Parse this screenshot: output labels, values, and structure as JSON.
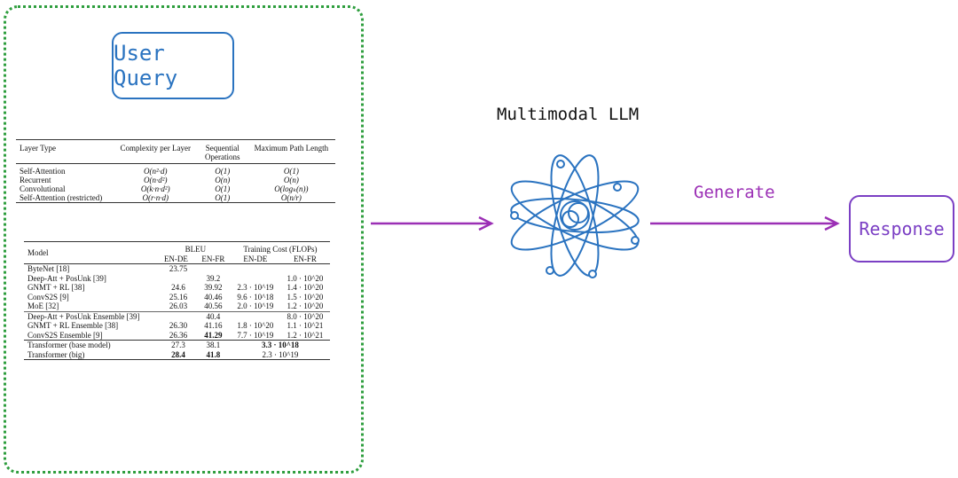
{
  "user_query": "User Query",
  "model_label": "Multimodal LLM",
  "action_label": "Generate",
  "response": "Response",
  "colors": {
    "frame": "#2e9e3e",
    "query": "#2a73c0",
    "arrow": "#9b2fb5",
    "response": "#7b3fc4",
    "atom": "#2a73c0"
  },
  "table1": {
    "headers": [
      "Layer Type",
      "Complexity per Layer",
      "Sequential Operations",
      "Maximum Path Length"
    ],
    "rows": [
      [
        "Self-Attention",
        "O(n²·d)",
        "O(1)",
        "O(1)"
      ],
      [
        "Recurrent",
        "O(n·d²)",
        "O(n)",
        "O(n)"
      ],
      [
        "Convolutional",
        "O(k·n·d²)",
        "O(1)",
        "O(logₖ(n))"
      ],
      [
        "Self-Attention (restricted)",
        "O(r·n·d)",
        "O(1)",
        "O(n/r)"
      ]
    ]
  },
  "table2": {
    "header_model": "Model",
    "header_bleu": "BLEU",
    "header_cost": "Training Cost (FLOPs)",
    "sub": [
      "EN-DE",
      "EN-FR",
      "EN-DE",
      "EN-FR"
    ],
    "rows": [
      [
        "ByteNet [18]",
        "23.75",
        "",
        "",
        ""
      ],
      [
        "Deep-Att + PosUnk [39]",
        "",
        "39.2",
        "",
        "1.0 · 10^20"
      ],
      [
        "GNMT + RL [38]",
        "24.6",
        "39.92",
        "2.3 · 10^19",
        "1.4 · 10^20"
      ],
      [
        "ConvS2S [9]",
        "25.16",
        "40.46",
        "9.6 · 10^18",
        "1.5 · 10^20"
      ],
      [
        "MoE [32]",
        "26.03",
        "40.56",
        "2.0 · 10^19",
        "1.2 · 10^20"
      ],
      [
        "Deep-Att + PosUnk Ensemble [39]",
        "",
        "40.4",
        "",
        "8.0 · 10^20"
      ],
      [
        "GNMT + RL Ensemble [38]",
        "26.30",
        "41.16",
        "1.8 · 10^20",
        "1.1 · 10^21"
      ],
      [
        "ConvS2S Ensemble [9]",
        "26.36",
        "41.29",
        "7.7 · 10^19",
        "1.2 · 10^21"
      ],
      [
        "Transformer (base model)",
        "27.3",
        "38.1",
        "3.3 · 10^18",
        ""
      ],
      [
        "Transformer (big)",
        "28.4",
        "41.8",
        "2.3 · 10^19",
        ""
      ]
    ]
  }
}
